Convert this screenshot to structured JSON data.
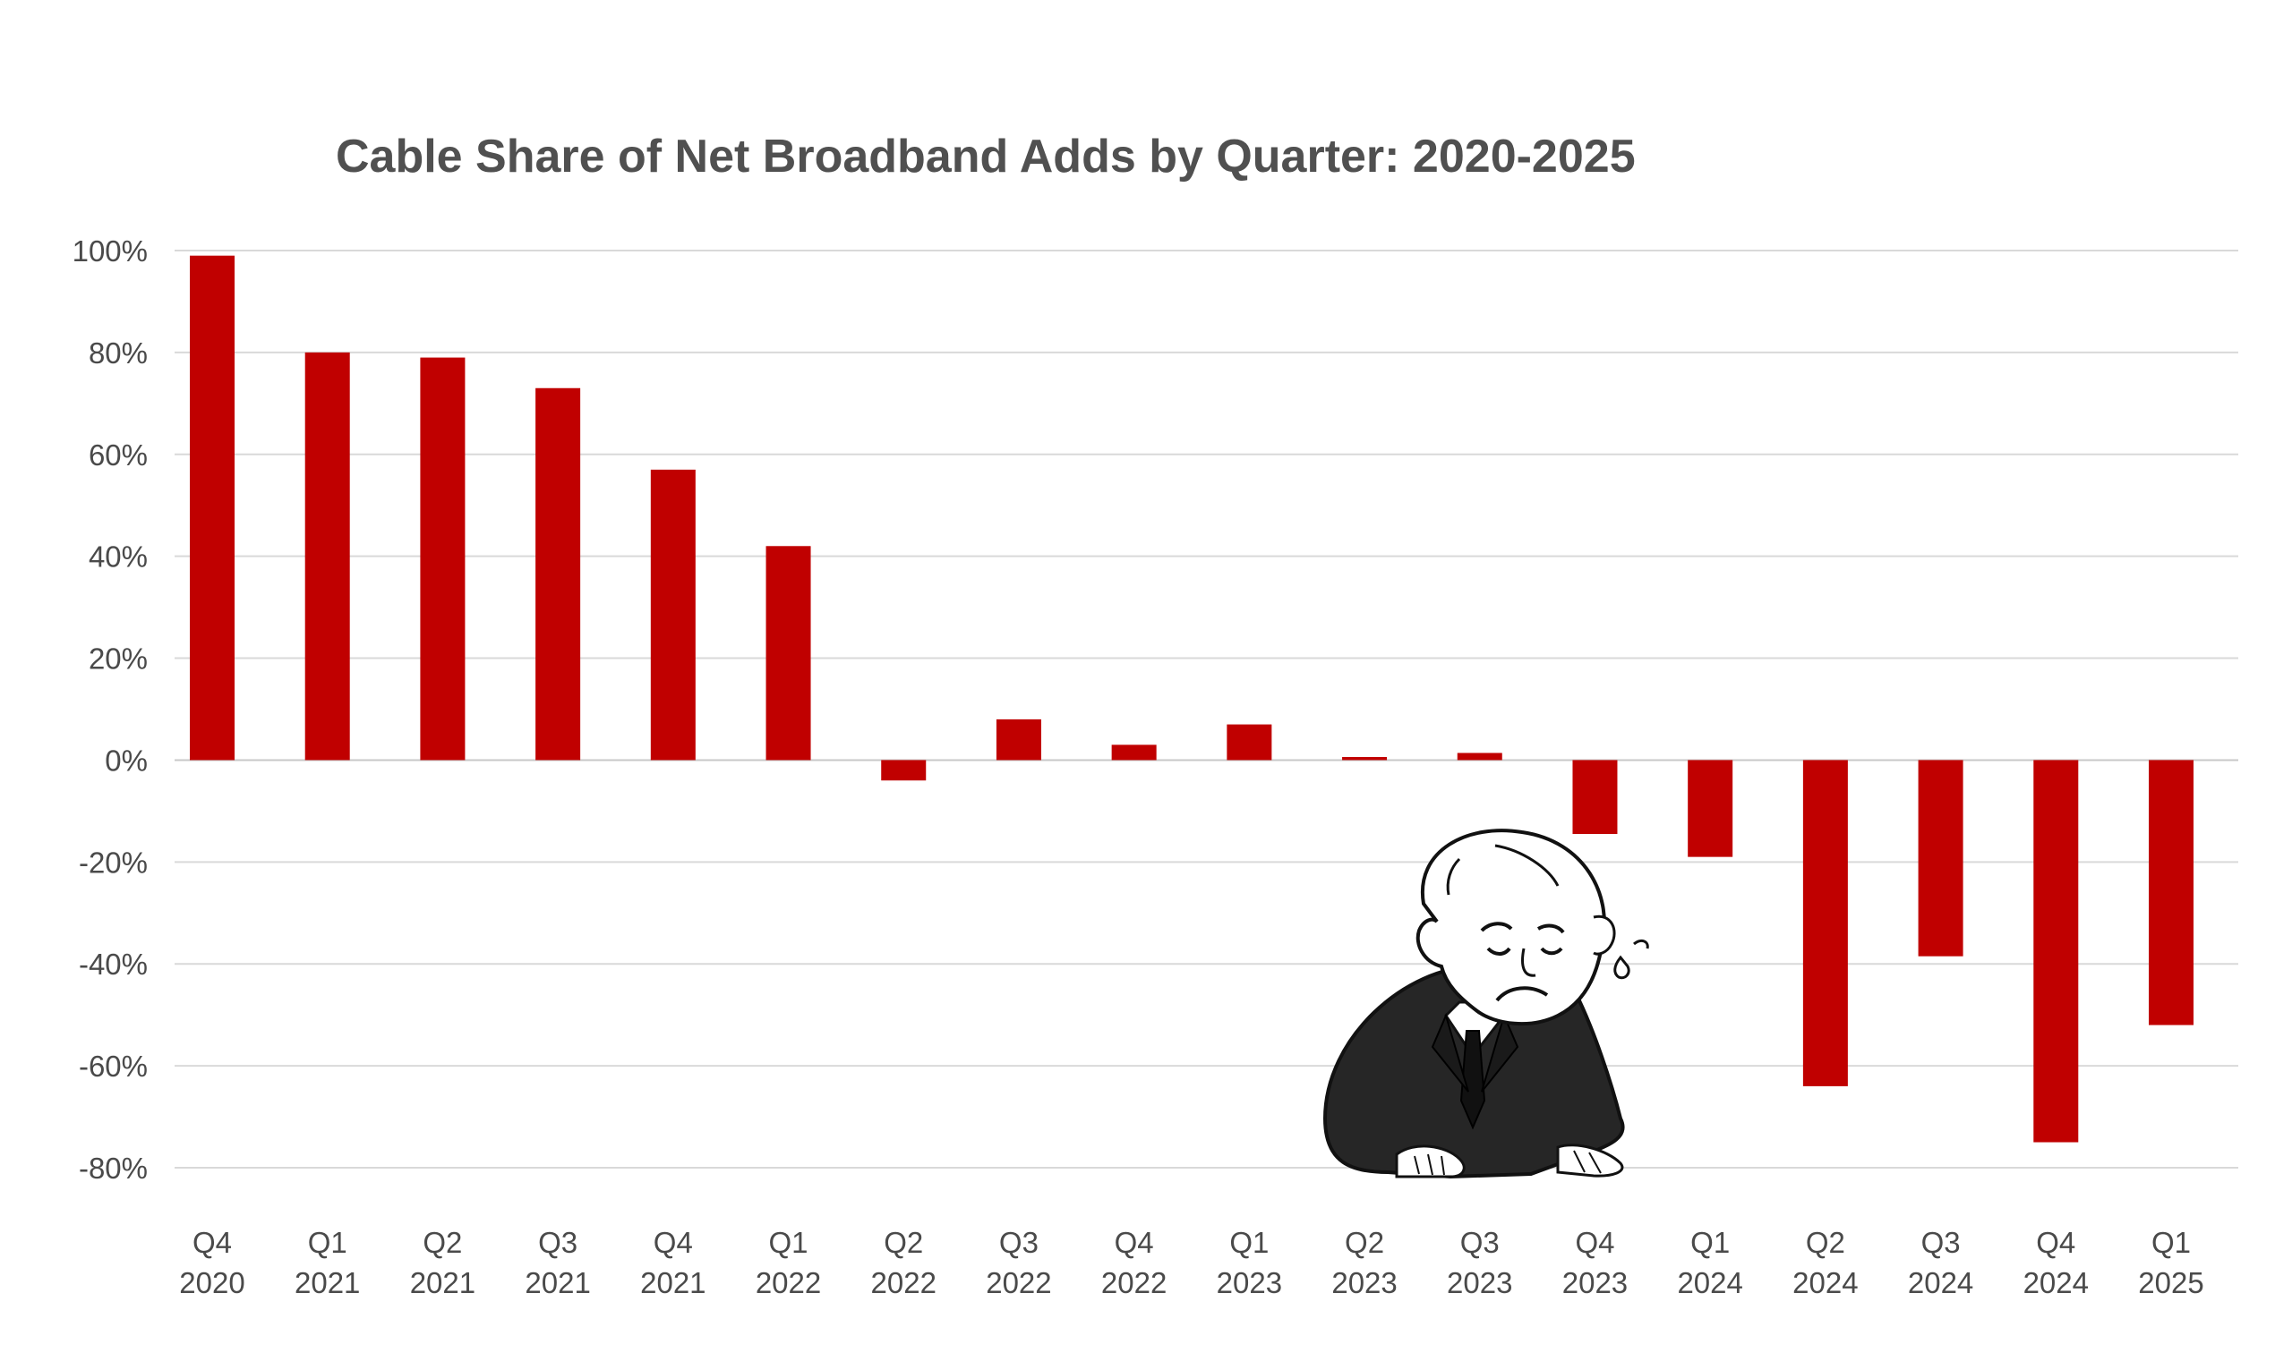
{
  "chart_data": {
    "type": "bar",
    "title": "Cable Share of Net Broadband Adds by Quarter: 2020-2025",
    "xlabel": "",
    "ylabel": "",
    "ylim": [
      -80,
      100
    ],
    "yticks": [
      100,
      80,
      60,
      40,
      20,
      0,
      -20,
      -40,
      -60,
      -80
    ],
    "ytick_labels": [
      "100%",
      "80%",
      "60%",
      "40%",
      "20%",
      "0%",
      "-20%",
      "-40%",
      "-60%",
      "-80%"
    ],
    "grid": true,
    "bar_color": "#c00000",
    "categories": [
      [
        "Q4",
        "2020"
      ],
      [
        "Q1",
        "2021"
      ],
      [
        "Q2",
        "2021"
      ],
      [
        "Q3",
        "2021"
      ],
      [
        "Q4",
        "2021"
      ],
      [
        "Q1",
        "2022"
      ],
      [
        "Q2",
        "2022"
      ],
      [
        "Q3",
        "2022"
      ],
      [
        "Q4",
        "2022"
      ],
      [
        "Q1",
        "2023"
      ],
      [
        "Q2",
        "2023"
      ],
      [
        "Q3",
        "2023"
      ],
      [
        "Q4",
        "2023"
      ],
      [
        "Q1",
        "2024"
      ],
      [
        "Q2",
        "2024"
      ],
      [
        "Q3",
        "2024"
      ],
      [
        "Q4",
        "2024"
      ],
      [
        "Q1",
        "2025"
      ]
    ],
    "values": [
      99,
      80,
      79,
      73,
      57,
      42,
      -4,
      8,
      3,
      7,
      0.6,
      1.4,
      -14.5,
      -19,
      -64,
      -38.5,
      -75,
      -52
    ]
  },
  "illustration": {
    "name": "sad businessman cartoon"
  }
}
